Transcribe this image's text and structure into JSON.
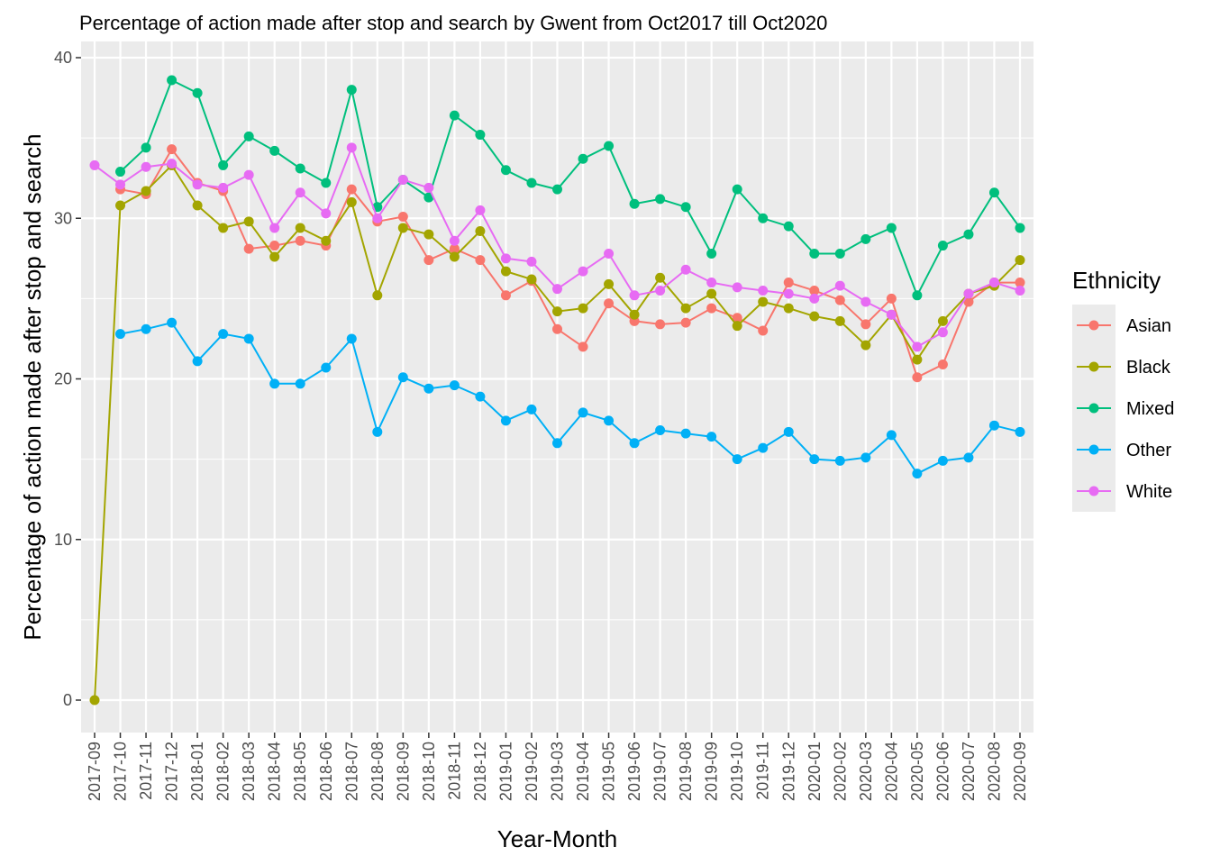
{
  "chart_data": {
    "type": "line",
    "title": "Percentage of action made after stop and search by Gwent from Oct2017 till Oct2020",
    "xlabel": "Year-Month",
    "ylabel": "Percentage of action made after stop and search",
    "ylim": [
      -2,
      40
    ],
    "yticks": [
      0,
      10,
      20,
      30,
      40
    ],
    "grid": true,
    "legend": {
      "title": "Ethnicity",
      "position": "right"
    },
    "x": [
      "2017-09",
      "2017-10",
      "2017-11",
      "2017-12",
      "2018-01",
      "2018-02",
      "2018-03",
      "2018-04",
      "2018-05",
      "2018-06",
      "2018-07",
      "2018-08",
      "2018-09",
      "2018-10",
      "2018-11",
      "2018-12",
      "2019-01",
      "2019-02",
      "2019-03",
      "2019-04",
      "2019-05",
      "2019-06",
      "2019-07",
      "2019-08",
      "2019-09",
      "2019-10",
      "2019-11",
      "2019-12",
      "2020-01",
      "2020-02",
      "2020-03",
      "2020-04",
      "2020-05",
      "2020-06",
      "2020-07",
      "2020-08",
      "2020-09"
    ],
    "series": [
      {
        "name": "Asian",
        "color": "#F8766D",
        "values": [
          null,
          31.8,
          31.5,
          34.3,
          32.2,
          31.7,
          28.1,
          28.3,
          28.6,
          28.3,
          31.8,
          29.8,
          30.1,
          27.4,
          28.1,
          27.4,
          25.2,
          26.1,
          23.1,
          22.0,
          24.7,
          23.6,
          23.4,
          23.5,
          24.4,
          23.8,
          23.0,
          26.0,
          25.5,
          24.9,
          23.4,
          25.0,
          20.1,
          20.9,
          24.8,
          26.0,
          26.0
        ]
      },
      {
        "name": "Black",
        "color": "#A3A500",
        "values": [
          0.0,
          30.8,
          31.7,
          33.3,
          30.8,
          29.4,
          29.8,
          27.6,
          29.4,
          28.6,
          31.0,
          25.2,
          29.4,
          29.0,
          27.6,
          29.2,
          26.7,
          26.2,
          24.2,
          24.4,
          25.9,
          24.0,
          26.3,
          24.4,
          25.3,
          23.3,
          24.8,
          24.4,
          23.9,
          23.6,
          22.1,
          24.0,
          21.2,
          23.6,
          25.3,
          25.8,
          27.4
        ]
      },
      {
        "name": "Mixed",
        "color": "#00BF7D",
        "values": [
          null,
          32.9,
          34.4,
          38.6,
          37.8,
          33.3,
          35.1,
          34.2,
          33.1,
          32.2,
          38.0,
          30.7,
          32.4,
          31.3,
          36.4,
          35.2,
          33.0,
          32.2,
          31.8,
          33.7,
          34.5,
          30.9,
          31.2,
          30.7,
          27.8,
          31.8,
          30.0,
          29.5,
          27.8,
          27.8,
          28.7,
          29.4,
          25.2,
          28.3,
          29.0,
          31.6,
          29.4
        ]
      },
      {
        "name": "Other",
        "color": "#00B0F6",
        "values": [
          null,
          22.8,
          23.1,
          23.5,
          21.1,
          22.8,
          22.5,
          19.7,
          19.7,
          20.7,
          22.5,
          16.7,
          20.1,
          19.4,
          19.6,
          18.9,
          17.4,
          18.1,
          16.0,
          17.9,
          17.4,
          16.0,
          16.8,
          16.6,
          16.4,
          15.0,
          15.7,
          16.7,
          15.0,
          14.9,
          15.1,
          16.5,
          14.1,
          14.9,
          15.1,
          17.1,
          16.7
        ]
      },
      {
        "name": "White",
        "color": "#E76BF3",
        "values": [
          33.3,
          32.1,
          33.2,
          33.4,
          32.1,
          31.9,
          32.7,
          29.4,
          31.6,
          30.3,
          34.4,
          30.0,
          32.4,
          31.9,
          28.6,
          30.5,
          27.5,
          27.3,
          25.6,
          26.7,
          27.8,
          25.2,
          25.5,
          26.8,
          26.0,
          25.7,
          25.5,
          25.3,
          25.0,
          25.8,
          24.8,
          24.0,
          22.0,
          22.9,
          25.3,
          26.0,
          25.5
        ]
      }
    ]
  }
}
